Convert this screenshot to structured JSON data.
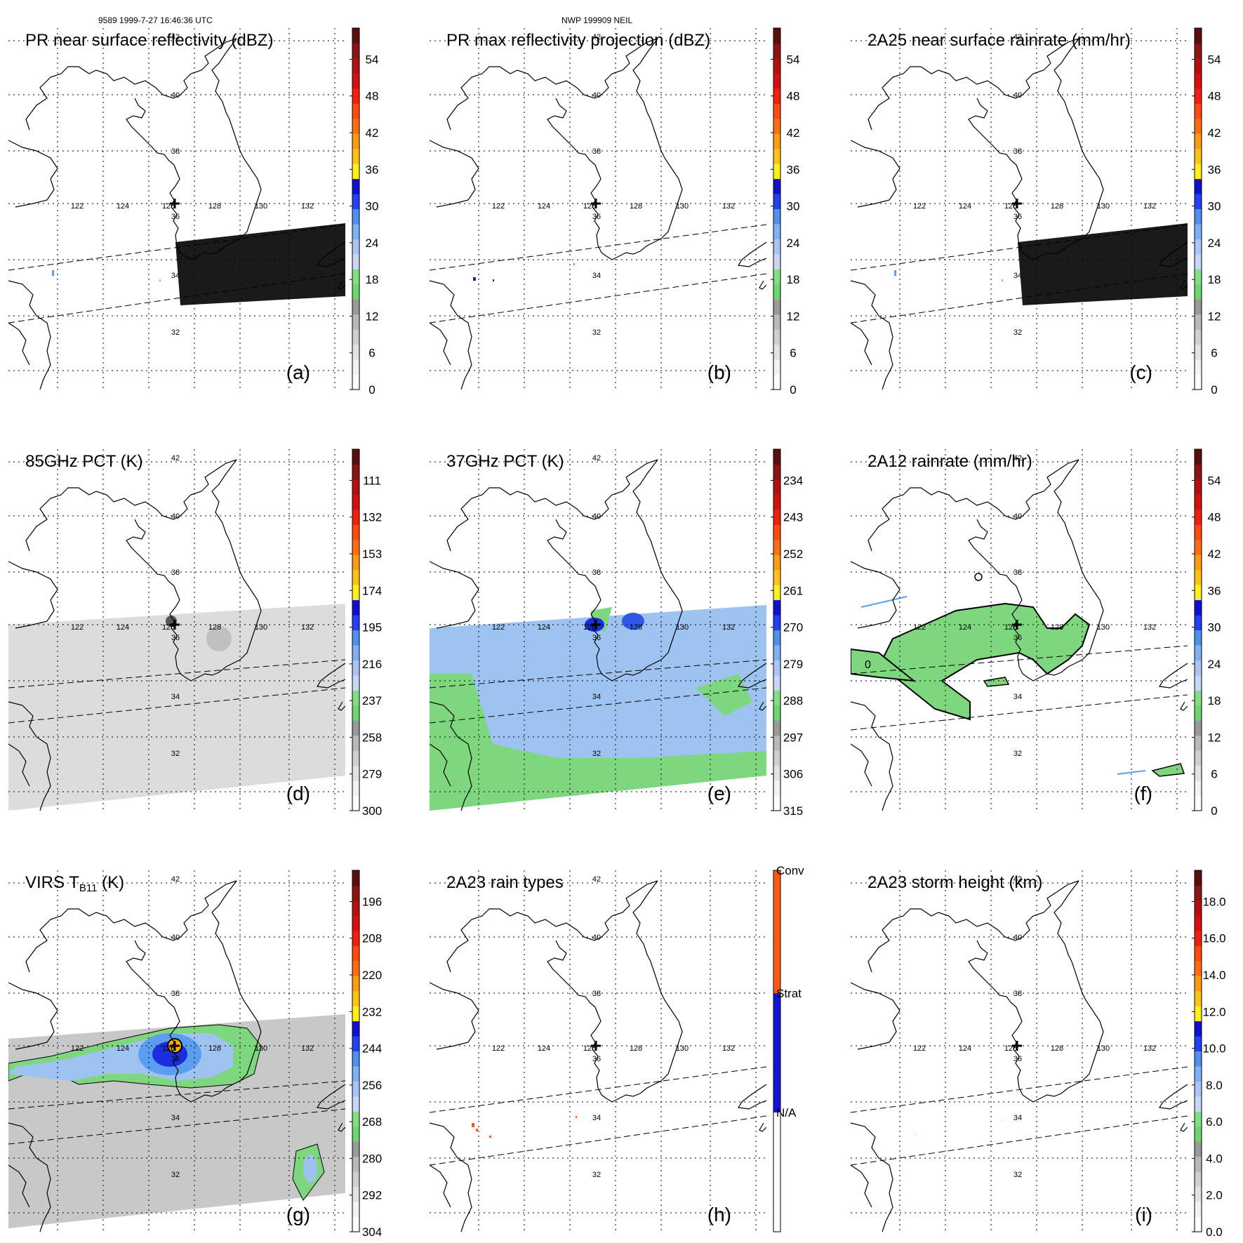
{
  "header": {
    "orbit_time": "9589 1999-7-27 16:46:36 UTC",
    "case_name": "NWP 199909 NEIL"
  },
  "map": {
    "lon_labels": [
      "122",
      "124",
      "126",
      "128",
      "130",
      "132"
    ],
    "lat_labels": [
      "42",
      "40",
      "38",
      "36",
      "34",
      "32"
    ]
  },
  "colors": {
    "coast": "#000000",
    "swath_dark": "#1a1a1a",
    "green": "#7ed67e",
    "light_blue": "#9ec3f0",
    "mid_blue": "#5b9ef0",
    "dark_blue": "#1a2ee0",
    "orange": "#ff5a10",
    "gray_swath": "#dcdcdc",
    "bar_palette": [
      "#ffffff",
      "#f2f2f2",
      "#e2e2e2",
      "#cfcfcf",
      "#b9b9b9",
      "#9a9a9a",
      "#6fd66f",
      "#83dd83",
      "#c9d6f5",
      "#a9c4f5",
      "#7fb0f2",
      "#4f8fef",
      "#2240ef",
      "#1010d0",
      "#ffef1a",
      "#ffc21a",
      "#ff9a14",
      "#ff6e12",
      "#ff4a10",
      "#f21e10",
      "#d4110f",
      "#b3110f",
      "#8a1414",
      "#5a0f0f"
    ]
  },
  "panels": [
    {
      "id": "a",
      "title": "PR near surface reflectivity (dBZ)",
      "letter": "(a)",
      "ticks": [
        "0",
        "6",
        "12",
        "18",
        "24",
        "30",
        "36",
        "42",
        "48",
        "54"
      ]
    },
    {
      "id": "b",
      "title": "PR max reflectivity projection (dBZ)",
      "letter": "(b)",
      "ticks": [
        "0",
        "6",
        "12",
        "18",
        "24",
        "30",
        "36",
        "42",
        "48",
        "54"
      ]
    },
    {
      "id": "c",
      "title": "2A25 near surface rainrate (mm/hr)",
      "letter": "(c)",
      "ticks": [
        "0",
        "6",
        "12",
        "18",
        "24",
        "30",
        "36",
        "42",
        "48",
        "54"
      ]
    },
    {
      "id": "d",
      "title": "85GHz PCT (K)",
      "letter": "(d)",
      "ticks": [
        "300",
        "279",
        "258",
        "237",
        "216",
        "195",
        "174",
        "153",
        "132",
        "111"
      ]
    },
    {
      "id": "e",
      "title": "37GHz PCT (K)",
      "letter": "(e)",
      "ticks": [
        "315",
        "306",
        "297",
        "288",
        "279",
        "270",
        "261",
        "252",
        "243",
        "234"
      ]
    },
    {
      "id": "f",
      "title": "2A12 rainrate (mm/hr)",
      "letter": "(f)",
      "ticks": [
        "0",
        "6",
        "12",
        "18",
        "24",
        "30",
        "36",
        "42",
        "48",
        "54"
      ],
      "contour_label": "0"
    },
    {
      "id": "g",
      "title_main": "VIRS T",
      "title_sub": "B11",
      "title_unit": " (K)",
      "letter": "(g)",
      "ticks": [
        "304",
        "292",
        "280",
        "268",
        "256",
        "244",
        "232",
        "220",
        "208",
        "196"
      ]
    },
    {
      "id": "h",
      "title": "2A23 rain types",
      "letter": "(h)",
      "categories": [
        "N/A",
        "Strat",
        "Conv"
      ]
    },
    {
      "id": "i",
      "title": "2A23 storm height (km)",
      "letter": "(i)",
      "ticks": [
        "0.0",
        "2.0",
        "4.0",
        "6.0",
        "8.0",
        "10.0",
        "12.0",
        "14.0",
        "16.0",
        "18.0"
      ]
    }
  ]
}
